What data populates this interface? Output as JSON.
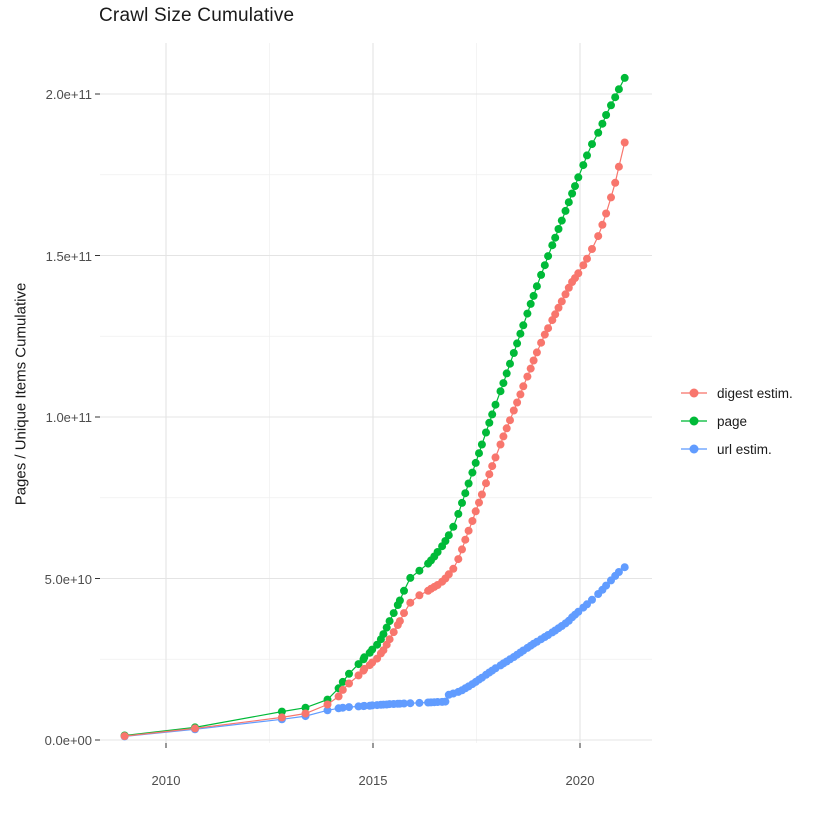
{
  "title": "Crawl Size Cumulative",
  "y_axis": {
    "label": "Pages / Unique Items Cumulative",
    "tick_labels": [
      "0.0e+00",
      "5.0e+10",
      "1.0e+11",
      "1.5e+11",
      "2.0e+11"
    ],
    "tick_values_billions": [
      0,
      50,
      100,
      150,
      200
    ],
    "minor_gridline_values_billions": [
      25,
      75,
      125,
      175
    ]
  },
  "x_axis": {
    "tick_labels": [
      "2010",
      "2015",
      "2020"
    ],
    "tick_values": [
      2010,
      2015,
      2020
    ],
    "minor_gridline_values": [
      2012.5,
      2017.5
    ]
  },
  "legend": {
    "items": [
      {
        "label": "digest estim.",
        "color": "#F8766D"
      },
      {
        "label": "page",
        "color": "#00BA38"
      },
      {
        "label": "url estim.",
        "color": "#619CFF"
      }
    ]
  },
  "style_colors": {
    "major_grid": "#e4e4e4",
    "minor_grid": "#efefef",
    "axis_tick": "#333333",
    "axis_text": "#4d4d4d"
  },
  "chart_data": {
    "type": "line",
    "title": "Crawl Size Cumulative",
    "xlabel": "",
    "ylabel": "Pages / Unique Items Cumulative",
    "xlim": [
      2008.4,
      2021.7
    ],
    "ylim": [
      -1000000000.0,
      216000000000.0
    ],
    "grid": "on",
    "legend_position": "right",
    "values_unit": "billions (1e9 items); multiply by 1e9 for absolute counts",
    "x_years": [
      2009.0,
      2010.7,
      2012.8,
      2013.37,
      2013.9,
      2014.17,
      2014.27,
      2014.42,
      2014.65,
      2014.77,
      2014.79,
      2014.92,
      2014.98,
      2015.1,
      2015.19,
      2015.25,
      2015.33,
      2015.4,
      2015.5,
      2015.6,
      2015.65,
      2015.75,
      2015.9,
      2016.12,
      2016.33,
      2016.4,
      2016.48,
      2016.56,
      2016.67,
      2016.75,
      2016.83,
      2016.94,
      2017.06,
      2017.15,
      2017.23,
      2017.31,
      2017.4,
      2017.48,
      2017.56,
      2017.63,
      2017.73,
      2017.81,
      2017.88,
      2017.96,
      2018.08,
      2018.15,
      2018.23,
      2018.31,
      2018.4,
      2018.48,
      2018.56,
      2018.63,
      2018.73,
      2018.81,
      2018.88,
      2018.96,
      2019.06,
      2019.15,
      2019.23,
      2019.33,
      2019.4,
      2019.48,
      2019.56,
      2019.65,
      2019.73,
      2019.81,
      2019.88,
      2019.96,
      2020.08,
      2020.17,
      2020.29,
      2020.44,
      2020.54,
      2020.63,
      2020.75,
      2020.85,
      2020.94,
      2021.08
    ],
    "series": [
      {
        "name": "url estim.",
        "color": "#619CFF",
        "values_billions": [
          1.1,
          3.3,
          6.4,
          7.4,
          9.2,
          9.8,
          10.0,
          10.2,
          10.4,
          10.5,
          10.55,
          10.6,
          10.7,
          10.8,
          10.9,
          10.95,
          11.0,
          11.1,
          11.15,
          11.2,
          11.25,
          11.3,
          11.4,
          11.5,
          11.6,
          11.65,
          11.7,
          11.75,
          11.8,
          11.9,
          14.0,
          14.4,
          14.9,
          15.4,
          16.0,
          16.6,
          17.3,
          18.0,
          18.7,
          19.3,
          20.2,
          20.9,
          21.5,
          22.2,
          23.1,
          23.7,
          24.3,
          25.0,
          25.7,
          26.4,
          27.1,
          27.7,
          28.5,
          29.2,
          29.8,
          30.4,
          31.2,
          31.9,
          32.5,
          33.3,
          33.9,
          34.6,
          35.3,
          36.1,
          36.9,
          38.0,
          38.8,
          39.7,
          41.0,
          42.0,
          43.4,
          45.2,
          46.5,
          47.8,
          49.4,
          50.8,
          52.0,
          53.5
        ]
      },
      {
        "name": "page",
        "color": "#00BA38",
        "values_billions": [
          1.4,
          3.9,
          8.8,
          10.0,
          12.5,
          16.0,
          18.0,
          20.5,
          23.5,
          25.0,
          25.6,
          27.0,
          28.0,
          29.5,
          31.2,
          32.8,
          34.8,
          36.8,
          39.3,
          41.8,
          43.2,
          46.2,
          50.2,
          52.4,
          54.6,
          55.6,
          56.8,
          58.2,
          60.0,
          61.6,
          63.4,
          66.0,
          70.0,
          73.4,
          76.4,
          79.4,
          82.8,
          85.8,
          88.8,
          91.5,
          95.2,
          98.2,
          100.8,
          103.8,
          108.0,
          110.5,
          113.5,
          116.5,
          119.8,
          122.8,
          125.8,
          128.4,
          132.0,
          135.0,
          137.5,
          140.5,
          144.0,
          147.0,
          149.8,
          153.2,
          155.5,
          158.2,
          160.8,
          163.8,
          166.5,
          169.2,
          171.5,
          174.2,
          178.0,
          181.0,
          184.5,
          188.0,
          190.8,
          193.5,
          196.5,
          199.0,
          201.5,
          205.0
        ]
      },
      {
        "name": "digest estim.",
        "color": "#F8766D",
        "values_billions": [
          1.2,
          3.6,
          7.0,
          8.2,
          11.0,
          13.5,
          15.5,
          17.5,
          20.0,
          21.5,
          22.0,
          23.2,
          24.0,
          25.2,
          26.8,
          27.8,
          29.5,
          31.2,
          33.4,
          35.6,
          36.8,
          39.3,
          42.5,
          44.8,
          46.2,
          46.8,
          47.4,
          48.0,
          49.0,
          50.0,
          51.3,
          53.0,
          56.0,
          59.0,
          62.0,
          64.8,
          67.8,
          70.8,
          73.5,
          76.0,
          79.5,
          82.3,
          84.8,
          87.5,
          91.5,
          94.0,
          96.5,
          99.0,
          102.0,
          104.5,
          107.0,
          109.5,
          112.5,
          115.0,
          117.5,
          120.0,
          123.0,
          125.5,
          127.5,
          130.0,
          131.8,
          133.8,
          135.8,
          138.0,
          140.0,
          141.8,
          143.0,
          144.5,
          147.0,
          149.0,
          152.0,
          156.0,
          159.5,
          163.0,
          168.0,
          172.5,
          177.5,
          185.0
        ]
      }
    ]
  }
}
